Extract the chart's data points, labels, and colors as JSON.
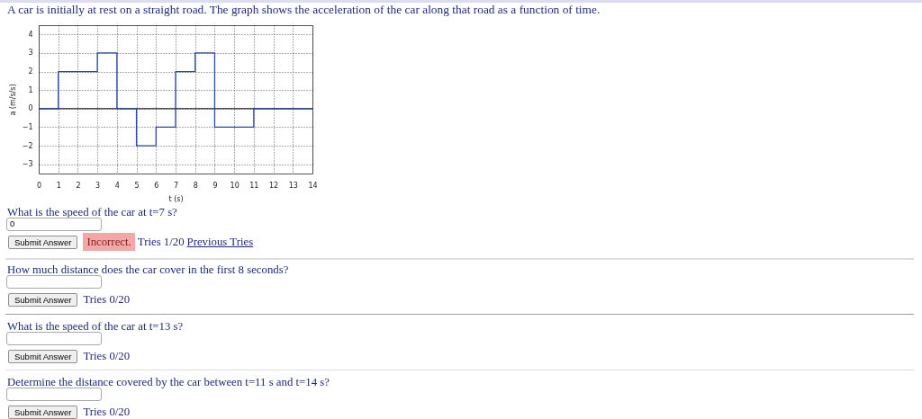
{
  "chart_data": {
    "type": "step",
    "title": "A car is initially at rest on a straight road. The graph shows the acceleration of the car along that road as a function of time.",
    "xlabel": "t (s)",
    "ylabel": "a (m/s/s)",
    "x": [
      0,
      1,
      3,
      4,
      5,
      6,
      7,
      8,
      9,
      11,
      14
    ],
    "values": [
      0,
      2,
      3,
      0,
      -2,
      -1,
      2,
      3,
      -1,
      0,
      0
    ],
    "color": "#2a48a8",
    "xlim": [
      0,
      14
    ],
    "xticks": [
      0,
      1,
      2,
      3,
      4,
      5,
      6,
      7,
      8,
      9,
      10,
      11,
      12,
      13,
      14
    ],
    "ylim": [
      -3.5,
      4.5
    ],
    "yticks": [
      -3,
      -2,
      -1,
      0,
      1,
      2,
      3,
      4
    ],
    "grid": true,
    "ref_lines": [
      {
        "axis": "y",
        "value": 0,
        "color": "#000000"
      }
    ],
    "annotations": [
      "What is the speed of the car at t=7 s?",
      "0",
      "Submit Answer",
      "Incorrect.",
      "Tries 1/20",
      "Previous Tries",
      "How much distance does the car cover in the first 8 seconds?",
      "Submit Answer",
      "Tries 0/20",
      "What is the speed of the car at t=13 s?",
      "Submit Answer",
      "Tries 0/20",
      "Determine the distance covered by the car between t=11 s and t=14 s?",
      "Submit Answer",
      "Tries 0/20"
    ]
  }
}
